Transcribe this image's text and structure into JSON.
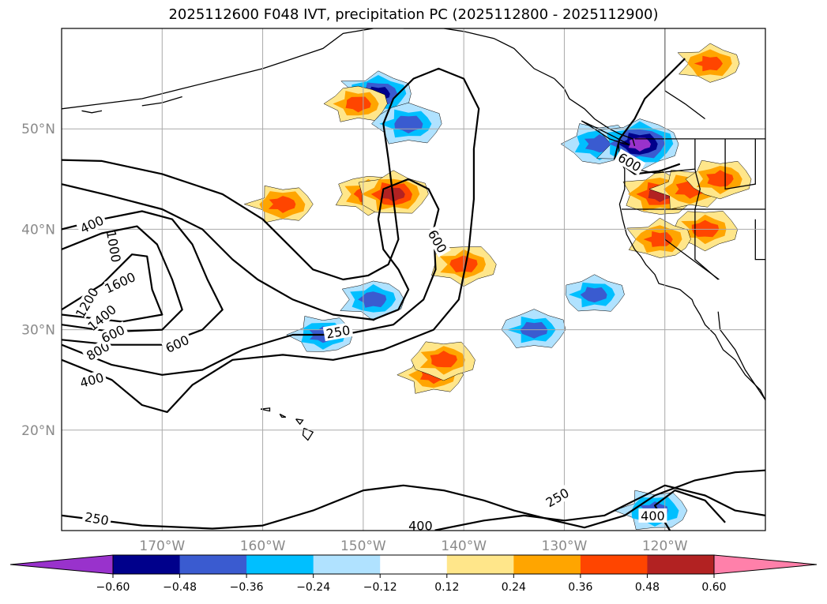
{
  "title": "2025112600 F048 IVT, precipitation PC (2025112800 - 2025112900)",
  "chart_data": {
    "type": "heatmap",
    "map": {
      "lon_range": [
        -180,
        -110
      ],
      "lat_range": [
        10,
        60
      ],
      "lat_ticks": [
        20,
        30,
        40,
        50
      ],
      "lat_tick_labels": [
        "20°N",
        "30°N",
        "40°N",
        "50°N"
      ],
      "lon_ticks": [
        -170,
        -160,
        -150,
        -140,
        -130,
        -120
      ],
      "lon_tick_labels": [
        "170°W",
        "160°W",
        "150°W",
        "140°W",
        "130°W",
        "120°W"
      ],
      "grid": true
    },
    "ivt_contour_labels": [
      "400",
      "1000",
      "600",
      "1200",
      "1600",
      "1400",
      "800",
      "600",
      "400",
      "250",
      "600",
      "250",
      "250",
      "400",
      "400",
      "600"
    ],
    "colorbar": {
      "tick_values": [
        -0.6,
        -0.48,
        -0.36,
        -0.24,
        -0.12,
        0.12,
        0.24,
        0.36,
        0.48,
        0.6
      ],
      "tick_labels": [
        "−0.60",
        "−0.48",
        "−0.36",
        "−0.24",
        "−0.12",
        "0.12",
        "0.24",
        "0.36",
        "0.48",
        "0.60"
      ],
      "colors": [
        "#9932cc",
        "#00008b",
        "#3a5bd0",
        "#00bfff",
        "#b0e2ff",
        "#ffffff",
        "#ffe68a",
        "#ffa500",
        "#ff4500",
        "#b22222",
        "#ff80aa"
      ],
      "extend": "both"
    },
    "precip_regions": [
      {
        "lon": -148.5,
        "lat": 53.5,
        "value": -0.5
      },
      {
        "lon": -145.5,
        "lat": 50.5,
        "value": -0.45
      },
      {
        "lon": -126.5,
        "lat": 48.5,
        "value": -0.45
      },
      {
        "lon": -122.5,
        "lat": 48.5,
        "value": -0.62
      },
      {
        "lon": -133.0,
        "lat": 30.0,
        "value": -0.4
      },
      {
        "lon": -154.0,
        "lat": 29.5,
        "value": -0.38
      },
      {
        "lon": -149.0,
        "lat": 33.0,
        "value": -0.4
      },
      {
        "lon": -127.0,
        "lat": 33.5,
        "value": -0.36
      },
      {
        "lon": -121.0,
        "lat": 12.0,
        "value": -0.45
      },
      {
        "lon": -149.5,
        "lat": 43.5,
        "value": 0.4
      },
      {
        "lon": -147.0,
        "lat": 43.5,
        "value": 0.48
      },
      {
        "lon": -158.0,
        "lat": 42.5,
        "value": 0.4
      },
      {
        "lon": -140.0,
        "lat": 36.5,
        "value": 0.42
      },
      {
        "lon": -120.5,
        "lat": 43.5,
        "value": 0.5
      },
      {
        "lon": -117.5,
        "lat": 44.0,
        "value": 0.45
      },
      {
        "lon": -116.0,
        "lat": 40.0,
        "value": 0.42
      },
      {
        "lon": -120.5,
        "lat": 39.0,
        "value": 0.4
      },
      {
        "lon": -143.0,
        "lat": 25.5,
        "value": 0.38
      },
      {
        "lon": -142.0,
        "lat": 27.0,
        "value": 0.4
      },
      {
        "lon": -115.5,
        "lat": 56.5,
        "value": 0.38
      },
      {
        "lon": -150.5,
        "lat": 52.5,
        "value": 0.36
      },
      {
        "lon": -114.5,
        "lat": 45.0,
        "value": 0.4
      }
    ]
  }
}
